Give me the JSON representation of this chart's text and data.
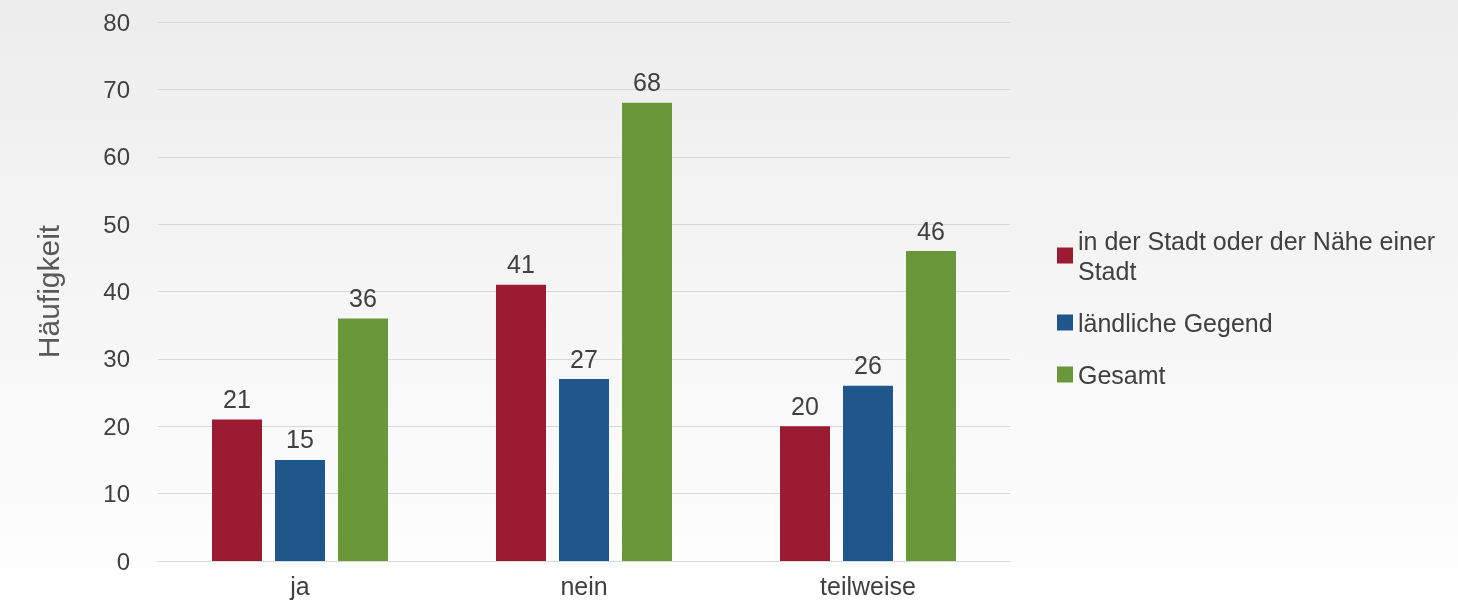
{
  "chart_data": {
    "type": "bar",
    "ylabel": "Häufigkeit",
    "categories": [
      "ja",
      "nein",
      "teilweise"
    ],
    "series": [
      {
        "name": "in der Stadt oder der Nähe einer Stadt",
        "color": "#9b1c31",
        "values": [
          21,
          41,
          20
        ]
      },
      {
        "name": "ländliche Gegend",
        "color": "#1f568c",
        "values": [
          15,
          27,
          26
        ]
      },
      {
        "name": "Gesamt",
        "color": "#6a973a",
        "values": [
          36,
          68,
          46
        ]
      }
    ],
    "ylim": [
      0,
      80
    ],
    "yticks": [
      0,
      10,
      20,
      30,
      40,
      50,
      60,
      70,
      80
    ],
    "grid": "y",
    "legend": "right",
    "data_labels": true
  }
}
